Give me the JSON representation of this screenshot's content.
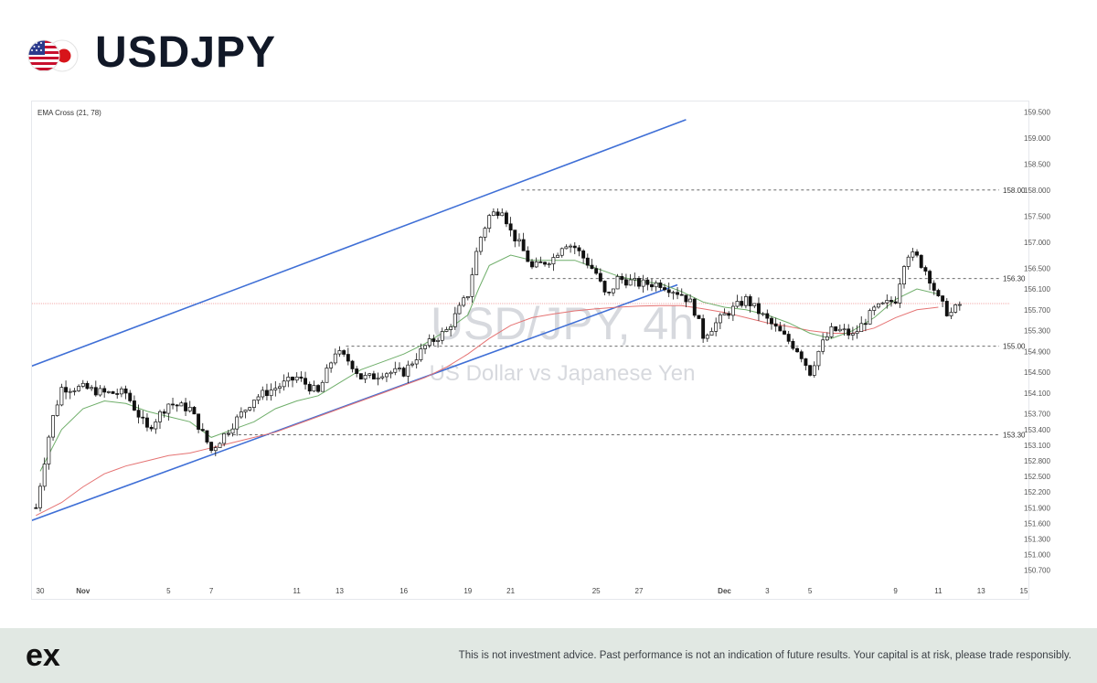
{
  "header": {
    "title": "USDJPY",
    "flag_icon": "us-japan-flags-icon"
  },
  "chart_data": {
    "type": "candlestick",
    "indicator_label": "EMA Cross (21, 78)",
    "watermark_symbol": "USD/JPY, 4h",
    "watermark_description": "US Dollar vs Japanese Yen",
    "ylim": [
      150.5,
      159.7
    ],
    "y_ticks": [
      "159.500",
      "159.000",
      "158.500",
      "158.000",
      "157.500",
      "157.000",
      "156.500",
      "156.100",
      "155.700",
      "155.300",
      "154.900",
      "154.500",
      "154.100",
      "153.700",
      "153.400",
      "153.100",
      "152.800",
      "152.500",
      "152.200",
      "151.900",
      "151.600",
      "151.300",
      "151.000",
      "150.700"
    ],
    "x_ticks": [
      {
        "label": "30",
        "day": 0
      },
      {
        "label": "Nov",
        "day": 2,
        "bold": true
      },
      {
        "label": "5",
        "day": 6
      },
      {
        "label": "7",
        "day": 8
      },
      {
        "label": "11",
        "day": 12
      },
      {
        "label": "13",
        "day": 14
      },
      {
        "label": "16",
        "day": 17
      },
      {
        "label": "19",
        "day": 20
      },
      {
        "label": "21",
        "day": 22
      },
      {
        "label": "25",
        "day": 26
      },
      {
        "label": "27",
        "day": 28
      },
      {
        "label": "Dec",
        "day": 32,
        "bold": true
      },
      {
        "label": "3",
        "day": 34
      },
      {
        "label": "5",
        "day": 36
      },
      {
        "label": "9",
        "day": 40
      },
      {
        "label": "11",
        "day": 42
      },
      {
        "label": "13",
        "day": 44
      },
      {
        "label": "15",
        "day": 46
      }
    ],
    "levels": [
      {
        "value": 158.0,
        "label": "158.00",
        "from_day": 22.5
      },
      {
        "value": 156.3,
        "label": "156.30",
        "from_day": 22.9
      },
      {
        "value": 155.0,
        "label": "155.00",
        "from_day": 14.3
      },
      {
        "value": 153.3,
        "label": "153.30",
        "from_day": 8.5
      }
    ],
    "current_price": 155.82,
    "channel_lines": [
      {
        "x1": -1.3,
        "y1": 154.48,
        "x2": 30.2,
        "y2": 159.35
      },
      {
        "x1": -1.3,
        "y1": 151.52,
        "x2": 29.8,
        "y2": 156.18
      }
    ],
    "colors": {
      "channel": "#3f6fd6",
      "ema_fast": "#6fae6a",
      "ema_slow": "#e57373",
      "level": "#555555",
      "current": "#f3a9a9",
      "candle": "#111111"
    },
    "ema_fast": [
      [
        0,
        152.6
      ],
      [
        1,
        153.4
      ],
      [
        2,
        153.8
      ],
      [
        3,
        153.95
      ],
      [
        4,
        153.9
      ],
      [
        5,
        153.75
      ],
      [
        6,
        153.65
      ],
      [
        7,
        153.55
      ],
      [
        8,
        153.25
      ],
      [
        9,
        153.4
      ],
      [
        10,
        153.55
      ],
      [
        11,
        153.8
      ],
      [
        12,
        153.95
      ],
      [
        13,
        154.05
      ],
      [
        14,
        154.3
      ],
      [
        15,
        154.55
      ],
      [
        16,
        154.7
      ],
      [
        17,
        154.85
      ],
      [
        18,
        155.05
      ],
      [
        19,
        155.3
      ],
      [
        20,
        155.6
      ],
      [
        20.5,
        156.1
      ],
      [
        21,
        156.55
      ],
      [
        22,
        156.75
      ],
      [
        23,
        156.65
      ],
      [
        24,
        156.65
      ],
      [
        25,
        156.65
      ],
      [
        26,
        156.5
      ],
      [
        27,
        156.35
      ],
      [
        28,
        156.25
      ],
      [
        29,
        156.2
      ],
      [
        30,
        156.05
      ],
      [
        31,
        155.85
      ],
      [
        32,
        155.75
      ],
      [
        33,
        155.7
      ],
      [
        34,
        155.6
      ],
      [
        35,
        155.45
      ],
      [
        36,
        155.25
      ],
      [
        37,
        155.15
      ],
      [
        38,
        155.3
      ],
      [
        39,
        155.55
      ],
      [
        40,
        155.9
      ],
      [
        41,
        156.1
      ],
      [
        42,
        156.0
      ]
    ],
    "ema_slow": [
      [
        -0.2,
        151.75
      ],
      [
        1,
        152.0
      ],
      [
        2,
        152.3
      ],
      [
        3,
        152.55
      ],
      [
        4,
        152.7
      ],
      [
        5,
        152.8
      ],
      [
        6,
        152.9
      ],
      [
        7,
        152.95
      ],
      [
        8,
        153.05
      ],
      [
        9,
        153.15
      ],
      [
        10,
        153.25
      ],
      [
        11,
        153.35
      ],
      [
        12,
        153.5
      ],
      [
        13,
        153.65
      ],
      [
        14,
        153.8
      ],
      [
        15,
        153.95
      ],
      [
        16,
        154.1
      ],
      [
        17,
        154.25
      ],
      [
        18,
        154.4
      ],
      [
        19,
        154.6
      ],
      [
        20,
        154.85
      ],
      [
        21,
        155.15
      ],
      [
        22,
        155.4
      ],
      [
        23,
        155.55
      ],
      [
        24,
        155.62
      ],
      [
        25,
        155.68
      ],
      [
        26,
        155.72
      ],
      [
        27,
        155.75
      ],
      [
        28,
        155.77
      ],
      [
        29,
        155.78
      ],
      [
        30,
        155.78
      ],
      [
        31,
        155.72
      ],
      [
        32,
        155.65
      ],
      [
        33,
        155.55
      ],
      [
        34,
        155.45
      ],
      [
        35,
        155.38
      ],
      [
        36,
        155.3
      ],
      [
        37,
        155.25
      ],
      [
        38,
        155.25
      ],
      [
        39,
        155.35
      ],
      [
        40,
        155.55
      ],
      [
        41,
        155.7
      ],
      [
        42,
        155.75
      ]
    ],
    "path": [
      [
        -0.2,
        151.9
      ],
      [
        0.5,
        153.5
      ],
      [
        1,
        154.2
      ],
      [
        2,
        154.2
      ],
      [
        3,
        154.1
      ],
      [
        4,
        154.1
      ],
      [
        5,
        153.4
      ],
      [
        6,
        153.9
      ],
      [
        7,
        153.8
      ],
      [
        8,
        153.0
      ],
      [
        9,
        153.5
      ],
      [
        10,
        154.0
      ],
      [
        11,
        154.2
      ],
      [
        12,
        154.4
      ],
      [
        13,
        154.1
      ],
      [
        13.8,
        154.9
      ],
      [
        14.5,
        154.7
      ],
      [
        15,
        154.4
      ],
      [
        15.5,
        154.4
      ],
      [
        16,
        154.5
      ],
      [
        17,
        154.5
      ],
      [
        18,
        155.0
      ],
      [
        19,
        155.3
      ],
      [
        20,
        156.0
      ],
      [
        20.5,
        157.0
      ],
      [
        21,
        157.5
      ],
      [
        21.6,
        157.65
      ],
      [
        22,
        157.2
      ],
      [
        22.5,
        156.9
      ],
      [
        23,
        156.5
      ],
      [
        24,
        156.7
      ],
      [
        24.5,
        157.0
      ],
      [
        25,
        156.9
      ],
      [
        26,
        156.4
      ],
      [
        26.5,
        155.9
      ],
      [
        27,
        156.3
      ],
      [
        28,
        156.2
      ],
      [
        29,
        156.2
      ],
      [
        30,
        156.0
      ],
      [
        30.5,
        155.8
      ],
      [
        31,
        155.2
      ],
      [
        32,
        155.6
      ],
      [
        33,
        155.9
      ],
      [
        34,
        155.5
      ],
      [
        34.5,
        155.3
      ],
      [
        35,
        155.1
      ],
      [
        35.5,
        154.9
      ],
      [
        36,
        154.5
      ],
      [
        36.5,
        155.0
      ],
      [
        37,
        155.3
      ],
      [
        37.5,
        155.3
      ],
      [
        38,
        155.2
      ],
      [
        39,
        155.7
      ],
      [
        40,
        155.9
      ],
      [
        40.5,
        156.8
      ],
      [
        41,
        156.7
      ],
      [
        41.5,
        156.4
      ],
      [
        42,
        155.9
      ],
      [
        42.5,
        155.6
      ],
      [
        43,
        155.8
      ]
    ]
  },
  "footer": {
    "logo_text": "ex",
    "disclaimer": "This is not investment advice. Past performance is not an indication of future results. Your capital is at risk, please trade responsibly."
  }
}
